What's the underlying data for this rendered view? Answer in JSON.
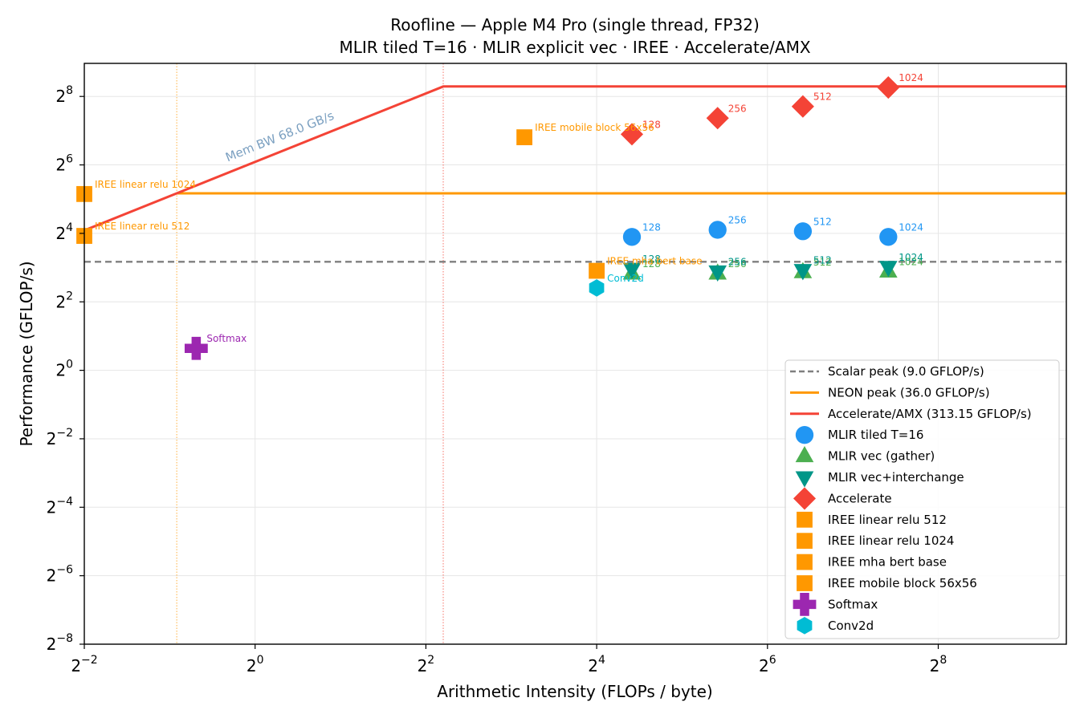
{
  "chart_data": {
    "type": "scatter",
    "title": "Roofline — Apple M4 Pro (single thread, FP32)",
    "subtitle": "MLIR tiled T=16 · MLIR explicit vec · IREE · Accelerate/AMX",
    "xlabel": "Arithmetic Intensity (FLOPs / byte)",
    "ylabel": "Performance (GFLOP/s)",
    "xscale": "log2",
    "yscale": "log2",
    "xlim": [
      0.25,
      724
    ],
    "ylim": [
      0.00390625,
      500
    ],
    "x_ticks": [
      {
        "base": "2",
        "exp": "−2",
        "value": 0.25
      },
      {
        "base": "2",
        "exp": "0",
        "value": 1
      },
      {
        "base": "2",
        "exp": "2",
        "value": 4
      },
      {
        "base": "2",
        "exp": "4",
        "value": 16
      },
      {
        "base": "2",
        "exp": "6",
        "value": 64
      },
      {
        "base": "2",
        "exp": "8",
        "value": 256
      }
    ],
    "y_ticks": [
      {
        "base": "2",
        "exp": "−8",
        "value": 0.00390625
      },
      {
        "base": "2",
        "exp": "−6",
        "value": 0.015625
      },
      {
        "base": "2",
        "exp": "−4",
        "value": 0.0625
      },
      {
        "base": "2",
        "exp": "−2",
        "value": 0.25
      },
      {
        "base": "2",
        "exp": "0",
        "value": 1
      },
      {
        "base": "2",
        "exp": "2",
        "value": 4
      },
      {
        "base": "2",
        "exp": "4",
        "value": 16
      },
      {
        "base": "2",
        "exp": "6",
        "value": 64
      },
      {
        "base": "2",
        "exp": "8",
        "value": 256
      }
    ],
    "grid": true,
    "legend_position": "lower-right",
    "mem_bw_label": "Mem BW 68.0 GB/s",
    "mem_bw_gbps": 68.0,
    "rooflines": [
      {
        "name": "Scalar peak (9.0 GFLOP/s)",
        "peak": 9.0,
        "color": "#7f7f7f",
        "style": "dashed",
        "sloped": false
      },
      {
        "name": "NEON peak (36.0 GFLOP/s)",
        "peak": 36.0,
        "color": "#ff9800",
        "style": "solid",
        "sloped": false,
        "ridge_x": 0.5294
      },
      {
        "name": "Accelerate/AMX (313.15 GFLOP/s)",
        "peak": 313.15,
        "color": "#f44336",
        "style": "solid",
        "sloped": true,
        "ridge_x": 4.605
      }
    ],
    "series": [
      {
        "name": "MLIR tiled T=16",
        "marker": "circle",
        "color": "#2196f3",
        "points": [
          {
            "x": 21.3,
            "y": 14.9,
            "label": "128"
          },
          {
            "x": 42.7,
            "y": 17.2,
            "label": "256"
          },
          {
            "x": 85.3,
            "y": 16.7,
            "label": "512"
          },
          {
            "x": 170.7,
            "y": 14.9,
            "label": "1024"
          }
        ]
      },
      {
        "name": "MLIR vec (gather)",
        "marker": "triangle-up",
        "color": "#4caf50",
        "points": [
          {
            "x": 21.3,
            "y": 7.1,
            "label": "128"
          },
          {
            "x": 42.7,
            "y": 7.1,
            "label": "256"
          },
          {
            "x": 85.3,
            "y": 7.3,
            "label": "512"
          },
          {
            "x": 170.7,
            "y": 7.4,
            "label": "1024"
          }
        ]
      },
      {
        "name": "MLIR vec+interchange",
        "marker": "triangle-down",
        "color": "#009688",
        "points": [
          {
            "x": 21.3,
            "y": 7.8,
            "label": "128"
          },
          {
            "x": 42.7,
            "y": 7.4,
            "label": "256"
          },
          {
            "x": 85.3,
            "y": 7.6,
            "label": "512"
          },
          {
            "x": 170.7,
            "y": 8.1,
            "label": "1024"
          }
        ]
      },
      {
        "name": "Accelerate",
        "marker": "diamond",
        "color": "#f44336",
        "points": [
          {
            "x": 21.3,
            "y": 119,
            "label": "128"
          },
          {
            "x": 42.7,
            "y": 165,
            "label": "256"
          },
          {
            "x": 85.3,
            "y": 209,
            "label": "512"
          },
          {
            "x": 170.7,
            "y": 307,
            "label": "1024"
          }
        ]
      },
      {
        "name": "IREE linear relu 512",
        "marker": "square",
        "color": "#ff9800",
        "points": [
          {
            "x": 0.25,
            "y": 15.2,
            "label": "IREE linear relu 512"
          }
        ]
      },
      {
        "name": "IREE linear relu 1024",
        "marker": "square",
        "color": "#ff9800",
        "points": [
          {
            "x": 0.25,
            "y": 35.5,
            "label": "IREE linear relu 1024"
          }
        ]
      },
      {
        "name": "IREE mha bert base",
        "marker": "square",
        "color": "#ff9800",
        "points": [
          {
            "x": 16.0,
            "y": 7.5,
            "label": "IREE mha bert base"
          }
        ]
      },
      {
        "name": "IREE mobile block 56x56",
        "marker": "square",
        "color": "#ff9800",
        "points": [
          {
            "x": 8.9,
            "y": 112,
            "label": "IREE mobile block 56x56"
          }
        ]
      },
      {
        "name": "Softmax",
        "marker": "plus",
        "color": "#9c27b0",
        "points": [
          {
            "x": 0.62,
            "y": 1.56,
            "label": "Softmax"
          }
        ]
      },
      {
        "name": "Conv2d",
        "marker": "hexagon",
        "color": "#00bcd4",
        "points": [
          {
            "x": 16.0,
            "y": 5.3,
            "label": "Conv2d"
          }
        ]
      }
    ]
  }
}
